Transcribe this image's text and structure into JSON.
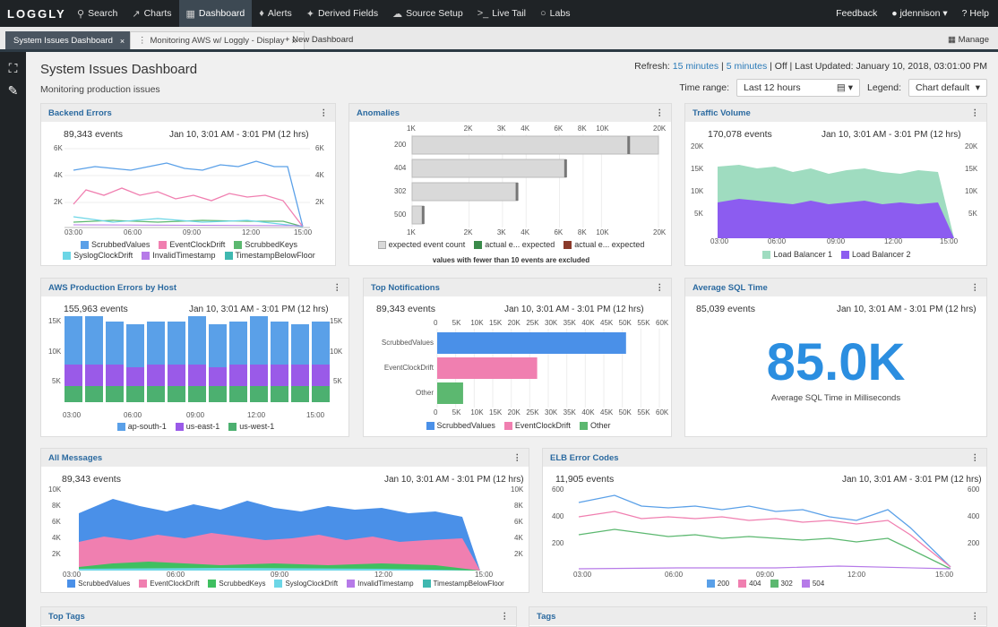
{
  "topnav": {
    "logo": "LOGGLY",
    "items": [
      {
        "label": "Search",
        "icon": "search-icon"
      },
      {
        "label": "Charts",
        "icon": "chart-icon"
      },
      {
        "label": "Dashboard",
        "icon": "dashboard-icon",
        "active": true
      },
      {
        "label": "Alerts",
        "icon": "bell-icon"
      },
      {
        "label": "Derived Fields",
        "icon": "wand-icon"
      },
      {
        "label": "Source Setup",
        "icon": "cloud-icon"
      },
      {
        "label": "Live Tail",
        "icon": "terminal-icon"
      },
      {
        "label": "Labs",
        "icon": "bulb-icon"
      }
    ],
    "feedback": "Feedback",
    "user": "jdennison",
    "help": "Help"
  },
  "tabs": {
    "t1": "System Issues Dashboard",
    "t2": "Monitoring AWS w/ Loggly - Display",
    "new": "+ New Dashboard",
    "manage": "Manage"
  },
  "header": {
    "title": "System Issues Dashboard",
    "subtitle": "Monitoring production issues",
    "refresh_label": "Refresh:",
    "r15": "15 minutes",
    "r5": "5 minutes",
    "off": "Off",
    "updated": "Last Updated: January 10, 2018, 03:01:00 PM",
    "time_range_label": "Time range:",
    "time_range": "Last 12 hours",
    "legend_label": "Legend:",
    "legend": "Chart default"
  },
  "colors": {
    "blue": "#5aa0e8",
    "pink": "#f07fb0",
    "green": "#5cb870",
    "cyan": "#6cd6e6",
    "purple": "#b67ae8",
    "teal": "#3fb8b0",
    "grey": "#d9d9d9",
    "darkgreen": "#3a8a4a",
    "brown": "#8a3a2a"
  },
  "panels": {
    "backend": {
      "title": "Backend Errors",
      "events": "89,343 events",
      "time": "Jan 10, 3:01 AM - 3:01 PM  (12 hrs)",
      "legend": [
        "ScrubbedValues",
        "EventClockDrift",
        "ScrubbedKeys",
        "SyslogClockDrift",
        "InvalidTimestamp",
        "TimestampBelowFloor"
      ]
    },
    "anomalies": {
      "title": "Anomalies",
      "axis": [
        "1K",
        "2K",
        "3K",
        "4K",
        "6K",
        "8K",
        "10K",
        "20K"
      ],
      "bars": [
        {
          "label": "200",
          "value": 20000,
          "actual": 14000
        },
        {
          "label": "404",
          "value": 6500,
          "actual": 6500
        },
        {
          "label": "302",
          "value": 3600,
          "actual": 3600
        },
        {
          "label": "500",
          "value": 1150,
          "actual": 1150
        }
      ],
      "legend": [
        "expected event count",
        "actual e... expected",
        "actual e... expected"
      ],
      "note": "values with fewer than 10 events are excluded"
    },
    "traffic": {
      "title": "Traffic Volume",
      "events": "170,078 events",
      "time": "Jan 10, 3:01 AM - 3:01 PM  (12 hrs)",
      "legend": [
        "Load Balancer 1",
        "Load Balancer 2"
      ]
    },
    "aws": {
      "title": "AWS Production Errors by Host",
      "events": "155,963 events",
      "time": "Jan 10, 3:01 AM - 3:01 PM  (12 hrs)",
      "legend": [
        "ap-south-1",
        "us-east-1",
        "us-west-1"
      ]
    },
    "topnot": {
      "title": "Top Notifications",
      "events": "89,343 events",
      "time": "Jan 10, 3:01 AM - 3:01 PM  (12 hrs)",
      "axis": [
        "0",
        "5K",
        "10K",
        "15K",
        "20K",
        "25K",
        "30K",
        "35K",
        "40K",
        "45K",
        "50K",
        "55K",
        "60K"
      ],
      "bars": [
        {
          "label": "ScrubbedValues",
          "value": 51000
        },
        {
          "label": "EventClockDrift",
          "value": 27000
        },
        {
          "label": "Other",
          "value": 7000
        }
      ],
      "legend": [
        "ScrubbedValues",
        "EventClockDrift",
        "Other"
      ]
    },
    "sql": {
      "title": "Average SQL Time",
      "events": "85,039 events",
      "time": "Jan 10, 3:01 AM - 3:01 PM  (12 hrs)",
      "value": "85.0K",
      "caption": "Average SQL Time in Milliseconds"
    },
    "allmsg": {
      "title": "All Messages",
      "events": "89,343 events",
      "time": "Jan 10, 3:01 AM - 3:01 PM  (12 hrs)",
      "legend": [
        "ScrubbedValues",
        "EventClockDrift",
        "ScrubbedKeys",
        "SyslogClockDrift",
        "InvalidTimestamp",
        "TimestampBelowFloor"
      ]
    },
    "elb": {
      "title": "ELB Error Codes",
      "events": "11,905 events",
      "time": "Jan 10, 3:01 AM - 3:01 PM  (12 hrs)",
      "legend": [
        "200",
        "404",
        "302",
        "504"
      ]
    },
    "toptags": {
      "title": "Top Tags"
    },
    "tags": {
      "title": "Tags"
    }
  },
  "axes": {
    "backend_y": [
      "6K",
      "4K",
      "2K",
      "0"
    ],
    "backend_x": [
      "03:00",
      "06:00",
      "09:00",
      "12:00",
      "15:00"
    ],
    "traffic_y": [
      "20K",
      "15K",
      "10K",
      "5K"
    ],
    "traffic_x": [
      "03:00",
      "06:00",
      "09:00",
      "12:00",
      "15:00"
    ],
    "aws_y": [
      "15K",
      "10K",
      "5K"
    ],
    "aws_x": [
      "03:00",
      "06:00",
      "09:00",
      "12:00",
      "15:00"
    ],
    "all_y": [
      "10K",
      "8K",
      "6K",
      "4K",
      "2K"
    ],
    "all_x": [
      "03:00",
      "06:00",
      "09:00",
      "12:00",
      "15:00"
    ],
    "elb_y": [
      "600",
      "400",
      "200"
    ],
    "elb_x": [
      "03:00",
      "06:00",
      "09:00",
      "12:00",
      "15:00"
    ]
  }
}
